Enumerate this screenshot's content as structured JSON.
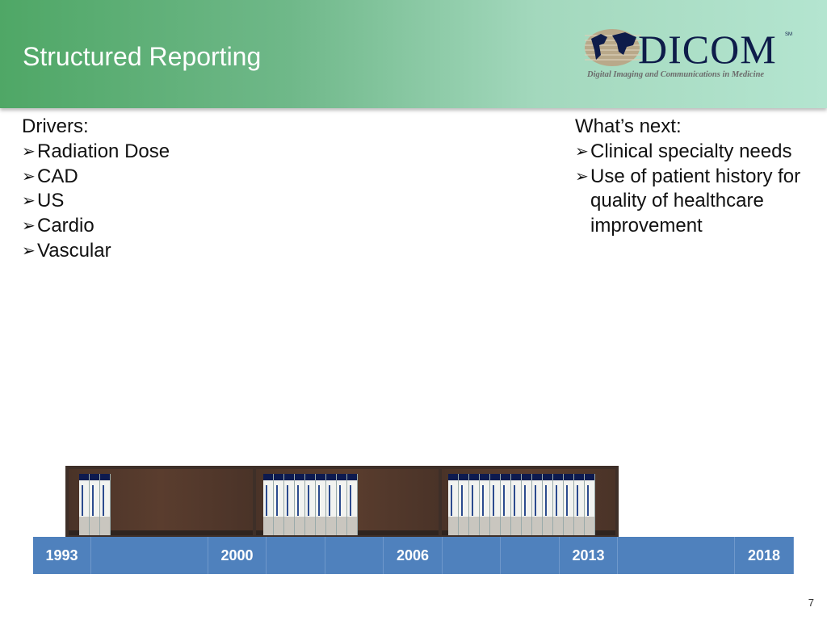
{
  "header": {
    "title": "Structured Reporting",
    "logo": {
      "wordmark": "DICOM",
      "sm": "SM",
      "tagline": "Digital Imaging and Communications in Medicine"
    }
  },
  "left": {
    "heading": "Drivers:",
    "items": [
      "Radiation Dose",
      "CAD",
      "US",
      "Cardio",
      "Vascular"
    ]
  },
  "right": {
    "heading": "What’s next:",
    "items": [
      "Clinical specialty needs"
    ],
    "multiline_item": [
      "Use of patient history for",
      "quality of healthcare",
      "improvement"
    ]
  },
  "bullet_icon": "arrow-bullet-icon",
  "shelf": {
    "bays": [
      {
        "books": 3
      },
      {
        "books": 9
      },
      {
        "books": 14
      }
    ]
  },
  "timeline": {
    "cells": [
      "1993",
      "",
      "2000",
      "",
      "",
      "2006",
      "",
      "",
      "2013",
      "",
      "2018"
    ],
    "color": "#4f81bd"
  },
  "page_number": "7"
}
